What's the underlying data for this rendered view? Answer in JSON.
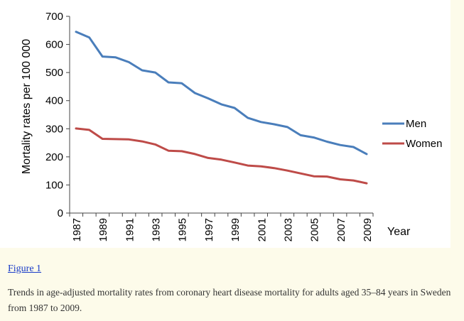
{
  "figure": {
    "link_label": "Figure 1",
    "caption": "Trends in age-adjusted mortality rates from coronary heart disease mortality for adults aged 35–84 years in Sweden from 1987 to 2009."
  },
  "chart_data": {
    "type": "line",
    "title": "",
    "xlabel": "Year",
    "ylabel": "Mortality rates per 100 000",
    "ylim": [
      0,
      700
    ],
    "yticks": [
      0,
      100,
      200,
      300,
      400,
      500,
      600,
      700
    ],
    "xticks": [
      1987,
      1989,
      1991,
      1993,
      1995,
      1997,
      1999,
      2001,
      2003,
      2005,
      2007,
      2009
    ],
    "x": [
      1987,
      1988,
      1989,
      1990,
      1991,
      1992,
      1993,
      1994,
      1995,
      1996,
      1997,
      1998,
      1999,
      2000,
      2001,
      2002,
      2003,
      2004,
      2005,
      2006,
      2007,
      2008,
      2009
    ],
    "series": [
      {
        "name": "Men",
        "color": "#4a7ebb",
        "values": [
          645,
          625,
          557,
          554,
          537,
          508,
          500,
          465,
          462,
          427,
          408,
          387,
          374,
          339,
          324,
          316,
          306,
          277,
          269,
          254,
          242,
          235,
          210
        ]
      },
      {
        "name": "Women",
        "color": "#be4b48",
        "values": [
          301,
          296,
          264,
          263,
          262,
          255,
          244,
          222,
          220,
          210,
          196,
          190,
          180,
          169,
          166,
          160,
          151,
          141,
          131,
          130,
          120,
          116,
          106
        ]
      }
    ],
    "grid": false,
    "legend_position": "right"
  }
}
